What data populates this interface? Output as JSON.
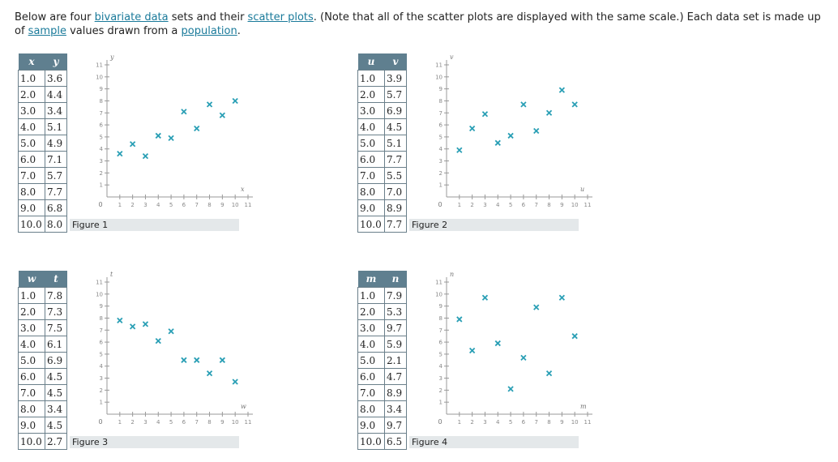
{
  "intro": {
    "t1": "Below are four ",
    "link_bivariate": "bivariate data",
    "t2": " sets and their ",
    "link_scatter": "scatter plots",
    "t3": ". (Note that all of the scatter plots are displayed with the same scale.) Each data set is made up of ",
    "link_sample": "sample",
    "t4": " values drawn from a ",
    "link_population": "population",
    "t5": "."
  },
  "colors": {
    "marker": "#2a9fb5",
    "header_bg": "#5f7f8f",
    "caption_bg": "#e4e8ea",
    "link": "#1a7a9a"
  },
  "figures": [
    {
      "caption": "Figure 1",
      "xname": "x",
      "yname": "y",
      "x": [
        "1.0",
        "2.0",
        "3.0",
        "4.0",
        "5.0",
        "6.0",
        "7.0",
        "8.0",
        "9.0",
        "10.0"
      ],
      "y": [
        "3.6",
        "4.4",
        "3.4",
        "5.1",
        "4.9",
        "7.1",
        "5.7",
        "7.7",
        "6.8",
        "8.0"
      ]
    },
    {
      "caption": "Figure 2",
      "xname": "u",
      "yname": "v",
      "x": [
        "1.0",
        "2.0",
        "3.0",
        "4.0",
        "5.0",
        "6.0",
        "7.0",
        "8.0",
        "9.0",
        "10.0"
      ],
      "y": [
        "3.9",
        "5.7",
        "6.9",
        "4.5",
        "5.1",
        "7.7",
        "5.5",
        "7.0",
        "8.9",
        "7.7"
      ]
    },
    {
      "caption": "Figure 3",
      "xname": "w",
      "yname": "t",
      "x": [
        "1.0",
        "2.0",
        "3.0",
        "4.0",
        "5.0",
        "6.0",
        "7.0",
        "8.0",
        "9.0",
        "10.0"
      ],
      "y": [
        "7.8",
        "7.3",
        "7.5",
        "6.1",
        "6.9",
        "4.5",
        "4.5",
        "3.4",
        "4.5",
        "2.7"
      ]
    },
    {
      "caption": "Figure 4",
      "xname": "m",
      "yname": "n",
      "x": [
        "1.0",
        "2.0",
        "3.0",
        "4.0",
        "5.0",
        "6.0",
        "7.0",
        "8.0",
        "9.0",
        "10.0"
      ],
      "y": [
        "7.9",
        "5.3",
        "9.7",
        "5.9",
        "2.1",
        "4.7",
        "8.9",
        "3.4",
        "9.7",
        "6.5"
      ]
    }
  ],
  "chart_data": [
    {
      "type": "scatter",
      "title": "",
      "xlabel": "x",
      "ylabel": "y",
      "xlim": [
        0,
        11
      ],
      "ylim": [
        0,
        11
      ],
      "x": [
        1,
        2,
        3,
        4,
        5,
        6,
        7,
        8,
        9,
        10
      ],
      "y": [
        3.6,
        4.4,
        3.4,
        5.1,
        4.9,
        7.1,
        5.7,
        7.7,
        6.8,
        8.0
      ],
      "x_ticks": [
        1,
        2,
        3,
        4,
        5,
        6,
        7,
        8,
        9,
        10,
        11
      ],
      "y_ticks": [
        1,
        2,
        3,
        4,
        5,
        6,
        7,
        8,
        9,
        10,
        11
      ],
      "grid": false
    },
    {
      "type": "scatter",
      "title": "",
      "xlabel": "u",
      "ylabel": "v",
      "xlim": [
        0,
        11
      ],
      "ylim": [
        0,
        11
      ],
      "x": [
        1,
        2,
        3,
        4,
        5,
        6,
        7,
        8,
        9,
        10
      ],
      "y": [
        3.9,
        5.7,
        6.9,
        4.5,
        5.1,
        7.7,
        5.5,
        7.0,
        8.9,
        7.7
      ],
      "x_ticks": [
        1,
        2,
        3,
        4,
        5,
        6,
        7,
        8,
        9,
        10,
        11
      ],
      "y_ticks": [
        1,
        2,
        3,
        4,
        5,
        6,
        7,
        8,
        9,
        10,
        11
      ],
      "grid": false
    },
    {
      "type": "scatter",
      "title": "",
      "xlabel": "w",
      "ylabel": "t",
      "xlim": [
        0,
        11
      ],
      "ylim": [
        0,
        11
      ],
      "x": [
        1,
        2,
        3,
        4,
        5,
        6,
        7,
        8,
        9,
        10
      ],
      "y": [
        7.8,
        7.3,
        7.5,
        6.1,
        6.9,
        4.5,
        4.5,
        3.4,
        4.5,
        2.7
      ],
      "x_ticks": [
        1,
        2,
        3,
        4,
        5,
        6,
        7,
        8,
        9,
        10,
        11
      ],
      "y_ticks": [
        1,
        2,
        3,
        4,
        5,
        6,
        7,
        8,
        9,
        10,
        11
      ],
      "grid": false
    },
    {
      "type": "scatter",
      "title": "",
      "xlabel": "m",
      "ylabel": "n",
      "xlim": [
        0,
        11
      ],
      "ylim": [
        0,
        11
      ],
      "x": [
        1,
        2,
        3,
        4,
        5,
        6,
        7,
        8,
        9,
        10
      ],
      "y": [
        7.9,
        5.3,
        9.7,
        5.9,
        2.1,
        4.7,
        8.9,
        3.4,
        9.7,
        6.5
      ],
      "x_ticks": [
        1,
        2,
        3,
        4,
        5,
        6,
        7,
        8,
        9,
        10,
        11
      ],
      "y_ticks": [
        1,
        2,
        3,
        4,
        5,
        6,
        7,
        8,
        9,
        10,
        11
      ],
      "grid": false
    }
  ],
  "origin_label": "0"
}
